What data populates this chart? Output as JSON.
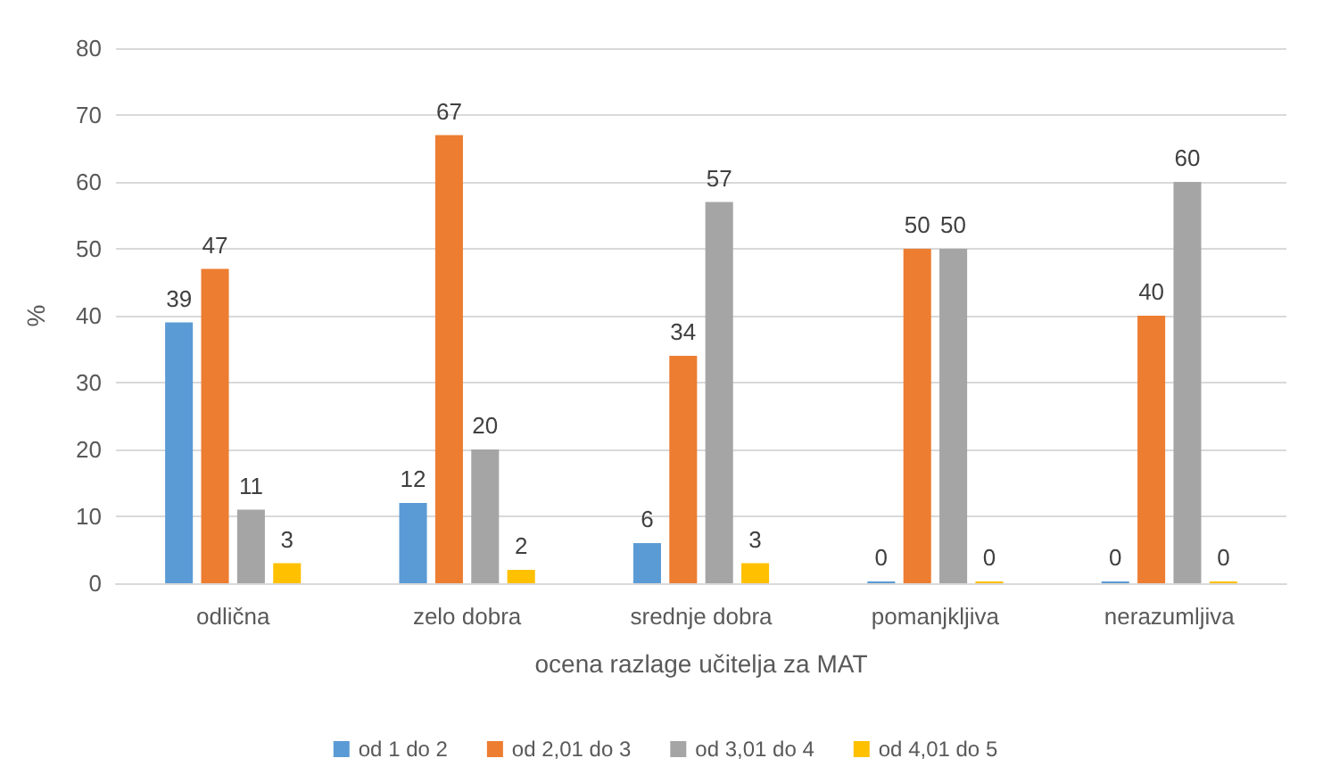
{
  "chart_data": {
    "type": "bar",
    "xlabel": "ocena razlage učitelja za MAT",
    "ylabel": "%",
    "categories": [
      "odlična",
      "zelo dobra",
      "srednje dobra",
      "pomanjkljiva",
      "nerazumljiva"
    ],
    "series": [
      {
        "name": "od 1 do 2",
        "color": "#5b9bd5",
        "values": [
          39,
          12,
          6,
          0,
          0
        ]
      },
      {
        "name": "od 2,01 do 3",
        "color": "#ed7d31",
        "values": [
          47,
          67,
          34,
          50,
          40
        ]
      },
      {
        "name": "od 3,01 do 4",
        "color": "#a5a5a5",
        "values": [
          11,
          20,
          57,
          50,
          60
        ]
      },
      {
        "name": "od 4,01 do 5",
        "color": "#ffc000",
        "values": [
          3,
          2,
          3,
          0,
          0
        ]
      }
    ],
    "ylim": [
      0,
      80
    ],
    "yticks": [
      0,
      10,
      20,
      30,
      40,
      50,
      60,
      70,
      80
    ],
    "grid": "y",
    "legend": "bottom",
    "data_labels": true
  }
}
